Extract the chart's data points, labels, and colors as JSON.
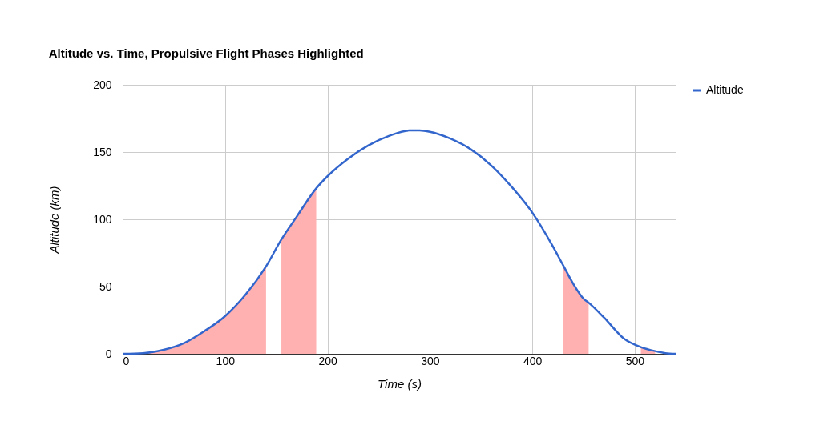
{
  "chart_data": {
    "type": "line",
    "title": "Altitude vs. Time, Propulsive Flight Phases Highlighted",
    "xlabel": "Time (s)",
    "ylabel": "Altitude (km)",
    "xlim": [
      0,
      540
    ],
    "xticks": [
      0,
      100,
      200,
      300,
      400,
      500
    ],
    "ylim": [
      0,
      200
    ],
    "yticks": [
      0,
      50,
      100,
      150,
      200
    ],
    "grid": true,
    "legend": "right",
    "series": [
      {
        "name": "Altitude",
        "color": "#3366cc",
        "x": [
          0,
          20,
          40,
          60,
          80,
          100,
          120,
          140,
          155,
          170,
          189,
          200,
          220,
          240,
          260,
          280,
          290,
          300,
          320,
          340,
          360,
          380,
          400,
          420,
          430,
          440,
          450,
          455,
          470,
          490,
          506,
          520,
          530,
          540
        ],
        "values": [
          0,
          0.5,
          3,
          8,
          17,
          28,
          44,
          65,
          85,
          102,
          123,
          132,
          145,
          155,
          162,
          166,
          166,
          165,
          160,
          152,
          140,
          124,
          105,
          80,
          66,
          52,
          41,
          38,
          27,
          11,
          5,
          2,
          0.5,
          0
        ]
      },
      {
        "type": "area",
        "color": "#ffb0b0",
        "x": [
          0,
          20,
          40,
          60,
          80,
          100,
          120,
          140
        ],
        "values": [
          0,
          0.5,
          3,
          8,
          17,
          28,
          44,
          65
        ]
      },
      {
        "type": "area",
        "color": "#ffb0b0",
        "x": [
          155,
          170,
          189
        ],
        "values": [
          85,
          102,
          123
        ]
      },
      {
        "type": "area",
        "color": "#ffb0b0",
        "x": [
          430,
          440,
          450,
          455
        ],
        "values": [
          66,
          52,
          41,
          38
        ]
      },
      {
        "type": "area",
        "color": "#ffb0b0",
        "x": [
          506,
          520
        ],
        "values": [
          5,
          2
        ]
      }
    ]
  }
}
